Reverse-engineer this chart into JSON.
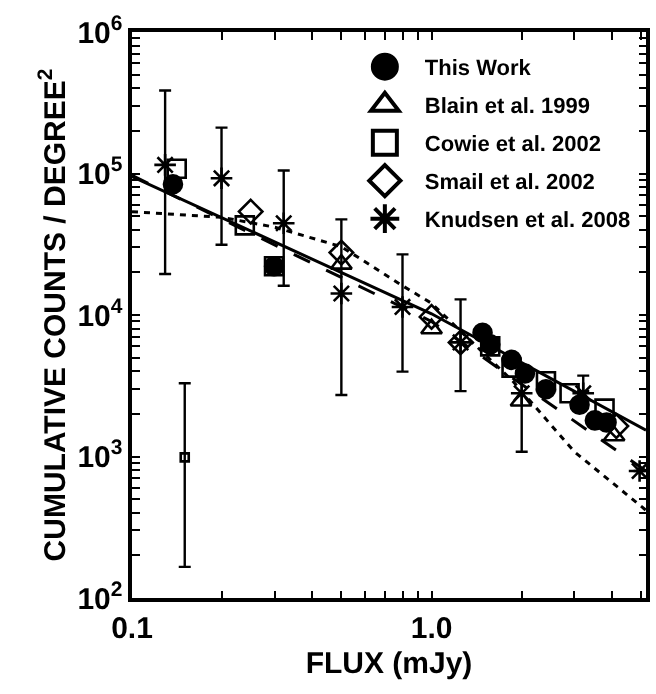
{
  "chart_data": {
    "type": "scatter",
    "xlabel": "FLUX (mJy)",
    "ylabel": "CUMULATIVE COUNTS / DEGREE$^{2}$",
    "log": "xy",
    "legend": "top right",
    "xlim": [
      0.1,
      5.2
    ],
    "ylim": [
      100,
      1000000
    ],
    "xticks": [
      {
        "value": 0.1,
        "label": "0.1"
      },
      {
        "value": 0.2,
        "label": null
      },
      {
        "value": 0.3,
        "label": null
      },
      {
        "value": 0.4,
        "label": null
      },
      {
        "value": 0.5,
        "label": null
      },
      {
        "value": 0.6,
        "label": null
      },
      {
        "value": 0.7,
        "label": null
      },
      {
        "value": 0.8,
        "label": null
      },
      {
        "value": 0.9,
        "label": null
      },
      {
        "value": 1,
        "label": "1.0"
      },
      {
        "value": 2,
        "label": null
      },
      {
        "value": 3,
        "label": null
      },
      {
        "value": 4,
        "label": null
      },
      {
        "value": 5,
        "label": null
      }
    ],
    "yticks": [
      {
        "value": 100,
        "label": "10$^{2}$"
      },
      {
        "value": 200,
        "label": null
      },
      {
        "value": 300,
        "label": null
      },
      {
        "value": 400,
        "label": null
      },
      {
        "value": 500,
        "label": null
      },
      {
        "value": 600,
        "label": null
      },
      {
        "value": 700,
        "label": null
      },
      {
        "value": 800,
        "label": null
      },
      {
        "value": 900,
        "label": null
      },
      {
        "value": 1000,
        "label": "10$^{3}$"
      },
      {
        "value": 2000,
        "label": null
      },
      {
        "value": 3000,
        "label": null
      },
      {
        "value": 4000,
        "label": null
      },
      {
        "value": 5000,
        "label": null
      },
      {
        "value": 6000,
        "label": null
      },
      {
        "value": 7000,
        "label": null
      },
      {
        "value": 8000,
        "label": null
      },
      {
        "value": 9000,
        "label": null
      },
      {
        "value": 10000,
        "label": "10$^{4}$"
      },
      {
        "value": 20000,
        "label": null
      },
      {
        "value": 30000,
        "label": null
      },
      {
        "value": 40000,
        "label": null
      },
      {
        "value": 50000,
        "label": null
      },
      {
        "value": 60000,
        "label": null
      },
      {
        "value": 70000,
        "label": null
      },
      {
        "value": 80000,
        "label": null
      },
      {
        "value": 90000,
        "label": null
      },
      {
        "value": 100000,
        "label": "10$^{5}$"
      },
      {
        "value": 200000,
        "label": null
      },
      {
        "value": 300000,
        "label": null
      },
      {
        "value": 400000,
        "label": null
      },
      {
        "value": 500000,
        "label": null
      },
      {
        "value": 600000,
        "label": null
      },
      {
        "value": 700000,
        "label": null
      },
      {
        "value": 800000,
        "label": null
      },
      {
        "value": 900000,
        "label": null
      },
      {
        "value": 1000000,
        "label": "10$^{6}$"
      }
    ],
    "series": [
      {
        "type": "line",
        "color": "#000000",
        "line_style": "solid",
        "marker": "none",
        "x": [
          0.1,
          1,
          5.2
        ],
        "values": [
          95000,
          10200,
          1535
        ]
      },
      {
        "type": "line",
        "color": "#000000",
        "line_style": "dashed",
        "marker": "none",
        "x": [
          0.1,
          1,
          5.2
        ],
        "values": [
          97000,
          9000,
          790
        ]
      },
      {
        "type": "line",
        "color": "#000000",
        "line_style": "dotted",
        "marker": "none",
        "x": [
          0.1,
          0.2,
          0.3,
          0.5,
          0.8,
          1,
          1.87,
          3,
          5.2
        ],
        "values": [
          53700,
          49000,
          41700,
          30400,
          16100,
          12100,
          3400,
          1080,
          417
        ]
      },
      {
        "name": "This Work",
        "color": "#000000",
        "marker": "circle",
        "x": [
          0.137,
          0.298,
          1.48,
          1.57,
          1.85,
          2.05,
          2.41,
          3.12,
          3.51,
          3.84
        ],
        "values": [
          84000,
          22100,
          7500,
          6200,
          4820,
          3860,
          2990,
          2320,
          1800,
          1740
        ]
      },
      {
        "name": "Blain et al. 1999",
        "color": "#000000",
        "marker": "triangle",
        "x": [
          0.5,
          1.0,
          1.99,
          4.07
        ],
        "values": [
          22900,
          8000,
          2470,
          1400
        ]
      },
      {
        "name": "Cowie et al. 2002",
        "color": "#000000",
        "marker": "square",
        "x": [
          0.141,
          0.238,
          0.298,
          1.57,
          1.85,
          2.41,
          2.89,
          3.78
        ],
        "values": [
          108000,
          43000,
          22100,
          6000,
          4250,
          3400,
          2800,
          2180
        ]
      },
      {
        "name": "Smail et al. 2002",
        "color": "#000000",
        "marker": "diamond",
        "x": [
          0.249,
          0.5,
          1.0,
          1.25,
          4.14
        ],
        "values": [
          53800,
          27600,
          9700,
          6400,
          1640
        ]
      },
      {
        "name": "Knudsen et al. 2008",
        "color": "#000000",
        "marker": "cross",
        "x": [
          0.129,
          0.199,
          0.321,
          0.5,
          0.8,
          1.25,
          2.0,
          3.21,
          4.95
        ],
        "values": [
          115000,
          92500,
          44500,
          14200,
          11400,
          6400,
          2800,
          2800,
          790
        ],
        "errors": [
          [
            19500,
            386000
          ],
          [
            31400,
            211000
          ],
          [
            16100,
            105000
          ],
          [
            2720,
            47400
          ],
          [
            3980,
            26800
          ],
          [
            2900,
            12900
          ],
          [
            1080,
            3900
          ],
          [
            2900,
            3730
          ],
          null
        ]
      },
      {
        "color": "#000000",
        "marker": "square",
        "x": [
          0.15
        ],
        "values": [
          985
        ],
        "errors": [
          [
            166,
            3290
          ]
        ]
      }
    ]
  }
}
